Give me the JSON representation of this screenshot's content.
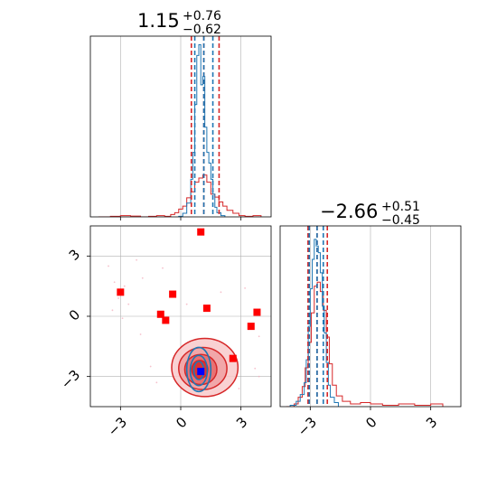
{
  "chart_data": {
    "type": "scatter",
    "description": "Corner plot of two parameters comparing two posterior samples (red and blue) with red square markers",
    "colors": {
      "sample_a": "#d62728",
      "sample_b": "#1f77b4",
      "marker": "#ff0000",
      "truth": "#0000ff",
      "grid": "#b0b0b0"
    },
    "panels": {
      "param1_marginal": {
        "title": {
          "value": "1.15",
          "plus": "+0.76",
          "minus": "−0.62"
        },
        "xlim": [
          -4.5,
          4.5
        ],
        "grid": true,
        "quantiles_red": [
          0.53,
          1.15,
          1.91
        ],
        "quantiles_blue": [
          0.7,
          1.15,
          1.6
        ],
        "hist_red": {
          "x": [
            -4.1,
            -3.5,
            -3.0,
            -2.5,
            -2.0,
            -1.6,
            -1.2,
            -0.8,
            -0.5,
            -0.3,
            -0.1,
            0.1,
            0.3,
            0.5,
            0.7,
            0.9,
            1.1,
            1.3,
            1.5,
            1.7,
            1.9,
            2.1,
            2.3,
            2.6,
            2.9,
            3.2,
            3.6,
            4.0
          ],
          "y": [
            0.0,
            0.3,
            0.6,
            0.4,
            0.0,
            0.3,
            0.6,
            0.3,
            1.2,
            2.1,
            3.9,
            5.4,
            9.6,
            12.6,
            17.4,
            19.5,
            21.0,
            17.4,
            11.4,
            9.9,
            7.5,
            5.4,
            3.3,
            1.8,
            0.6,
            0.3,
            0.6,
            0.0
          ]
        },
        "hist_blue": {
          "x": [
            -0.1,
            0.1,
            0.3,
            0.5,
            0.6,
            0.7,
            0.8,
            0.9,
            1.0,
            1.1,
            1.2,
            1.3,
            1.4,
            1.5,
            1.6,
            1.7,
            1.8,
            2.0,
            2.2
          ],
          "y": [
            0.3,
            1.8,
            6.9,
            18.9,
            32.4,
            56.4,
            81.0,
            86.4,
            66.3,
            70.5,
            45.0,
            32.4,
            27.0,
            18.9,
            11.4,
            4.8,
            2.1,
            0.6,
            0.0
          ]
        }
      },
      "param2_marginal": {
        "title": {
          "value": "−2.66",
          "plus": "+0.51",
          "minus": "−0.45"
        },
        "xlim": [
          -4.5,
          4.5
        ],
        "xticks": [
          -3,
          0,
          3
        ],
        "xtick_labels": [
          "−3",
          "0",
          "3"
        ],
        "grid": true,
        "quantiles_red": [
          -3.11,
          -2.66,
          -2.15
        ],
        "quantiles_blue": [
          -3.05,
          -2.66,
          -2.35
        ],
        "hist_red": {
          "x": [
            -4.2,
            -3.8,
            -3.6,
            -3.4,
            -3.25,
            -3.1,
            -2.95,
            -2.8,
            -2.65,
            -2.5,
            -2.35,
            -2.2,
            -2.05,
            -1.9,
            -1.7,
            -1.4,
            -1.0,
            -0.5,
            0.0,
            0.6,
            1.4,
            2.2,
            3.0,
            3.6
          ],
          "y": [
            0.0,
            0.6,
            2.1,
            4.5,
            8.7,
            14.4,
            21.0,
            27.0,
            27.9,
            25.8,
            21.6,
            15.6,
            9.6,
            4.8,
            2.4,
            1.2,
            0.6,
            0.9,
            0.6,
            0.3,
            0.6,
            0.3,
            0.6,
            0.0
          ]
        },
        "hist_blue": {
          "x": [
            -4.0,
            -3.7,
            -3.5,
            -3.3,
            -3.2,
            -3.1,
            -3.0,
            -2.9,
            -2.8,
            -2.7,
            -2.6,
            -2.5,
            -2.4,
            -2.3,
            -2.2,
            -2.1,
            -2.0,
            -1.8,
            -1.6
          ],
          "y": [
            0.3,
            1.2,
            2.7,
            5.4,
            10.5,
            18.0,
            26.4,
            33.0,
            37.5,
            36.0,
            34.5,
            30.0,
            22.5,
            16.5,
            9.9,
            4.8,
            2.1,
            0.9,
            0.0
          ]
        }
      },
      "joint": {
        "xlim": [
          -4.5,
          4.5
        ],
        "ylim": [
          -4.5,
          4.5
        ],
        "xticks": [
          -3,
          0,
          3
        ],
        "yticks": [
          -3,
          0,
          3
        ],
        "xtick_labels": [
          "−3",
          "0",
          "3"
        ],
        "ytick_labels": [
          "−3",
          "0",
          "3"
        ],
        "grid": true,
        "markers": [
          {
            "x": 1.0,
            "y": 4.2
          },
          {
            "x": -3.0,
            "y": 1.2
          },
          {
            "x": -0.4,
            "y": 1.1
          },
          {
            "x": 1.3,
            "y": 0.4
          },
          {
            "x": -1.0,
            "y": 0.1
          },
          {
            "x": -0.75,
            "y": -0.2
          },
          {
            "x": 3.8,
            "y": 0.2
          },
          {
            "x": 3.5,
            "y": -0.5
          },
          {
            "x": 2.6,
            "y": -2.1
          }
        ],
        "truth": {
          "x": 1.0,
          "y": -2.75
        },
        "contours_red": [
          {
            "cx": 1.2,
            "cy": -2.55,
            "rx": 3.3,
            "ry": 1.45
          },
          {
            "cx": 1.1,
            "cy": -2.6,
            "rx": 2.4,
            "ry": 1.05
          },
          {
            "cx": 1.0,
            "cy": -2.65,
            "rx": 1.6,
            "ry": 0.75
          },
          {
            "cx": 0.95,
            "cy": -2.65,
            "rx": 0.8,
            "ry": 0.45
          }
        ],
        "contours_blue": [
          {
            "cx": 0.9,
            "cy": -2.65,
            "rx": 1.2,
            "ry": 1.1
          },
          {
            "cx": 0.9,
            "cy": -2.7,
            "rx": 0.85,
            "ry": 0.75
          },
          {
            "cx": 0.9,
            "cy": -2.7,
            "rx": 0.5,
            "ry": 0.45
          }
        ],
        "scatter_faint": [
          {
            "x": -3.6,
            "y": 2.5
          },
          {
            "x": -3.3,
            "y": 1.7
          },
          {
            "x": -2.8,
            "y": 1.5
          },
          {
            "x": -3.1,
            "y": 0.9
          },
          {
            "x": -2.6,
            "y": 0.6
          },
          {
            "x": -3.4,
            "y": 0.3
          },
          {
            "x": -2.9,
            "y": -0.1
          },
          {
            "x": -1.9,
            "y": 1.9
          },
          {
            "x": -2.2,
            "y": 2.8
          },
          {
            "x": -0.9,
            "y": 2.4
          },
          {
            "x": 0.3,
            "y": 0.6
          },
          {
            "x": 2.0,
            "y": 1.2
          },
          {
            "x": 3.2,
            "y": 1.4
          },
          {
            "x": 3.9,
            "y": -1.0
          },
          {
            "x": 3.7,
            "y": -2.6
          },
          {
            "x": 3.9,
            "y": -3.0
          },
          {
            "x": -1.2,
            "y": -3.3
          },
          {
            "x": -1.5,
            "y": -2.5
          },
          {
            "x": 2.9,
            "y": -3.6
          },
          {
            "x": -2.0,
            "y": -0.9
          }
        ]
      }
    }
  }
}
